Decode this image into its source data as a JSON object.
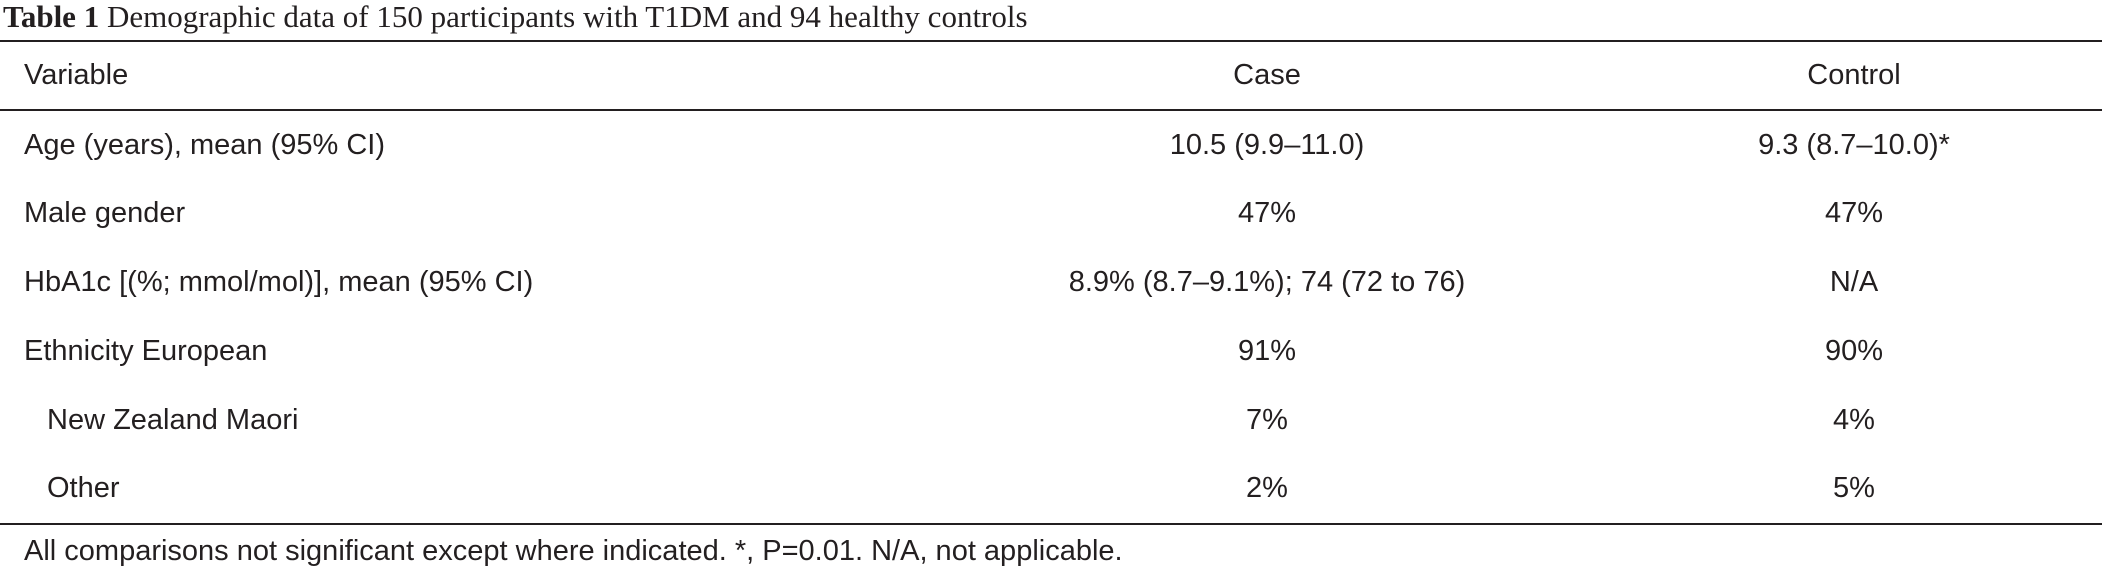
{
  "caption": {
    "label": "Table 1",
    "text": "Demographic data of 150 participants with T1DM and 94 healthy controls"
  },
  "table": {
    "headers": {
      "variable": "Variable",
      "case": "Case",
      "control": "Control"
    },
    "rows": [
      {
        "variable": "Age (years), mean (95% CI)",
        "case": "10.5 (9.9–11.0)",
        "control": "9.3 (8.7–10.0)*"
      },
      {
        "variable": "Male gender",
        "case": "47%",
        "control": "47%"
      },
      {
        "variable": "HbA1c [(%; mmol/mol)], mean (95% CI)",
        "case": "8.9% (8.7–9.1%); 74 (72 to 76)",
        "control": "N/A"
      },
      {
        "variable": "Ethnicity European",
        "case": "91%",
        "control": "90%"
      },
      {
        "variable": "New Zealand Maori",
        "case": "7%",
        "control": "4%"
      },
      {
        "variable": "Other",
        "case": "2%",
        "control": "5%"
      }
    ]
  },
  "footnote": "All comparisons not significant except where indicated. *, P=0.01. N/A, not applicable."
}
